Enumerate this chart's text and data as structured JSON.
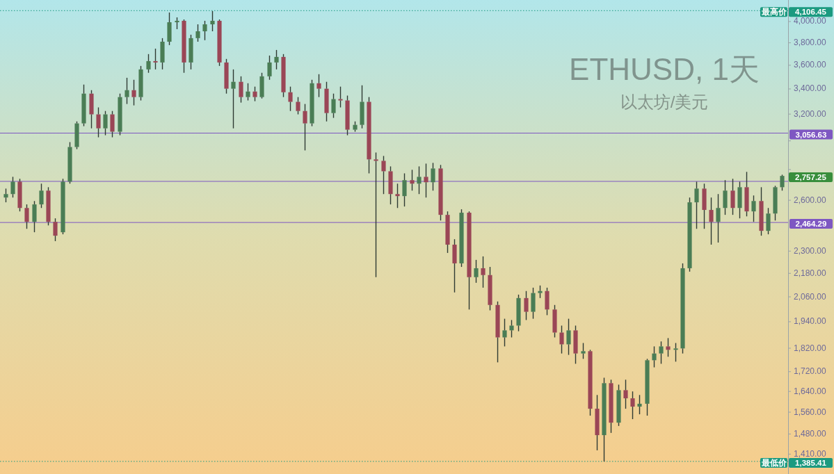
{
  "chart_data": {
    "type": "candlestick",
    "title": "ETHUSD, 1天",
    "subtitle": "以太坊/美元",
    "categories": [
      null,
      null,
      null,
      null,
      null,
      null,
      null,
      null,
      null,
      null,
      null,
      null,
      null,
      null,
      null,
      null,
      null,
      null,
      null,
      null,
      null,
      null,
      null,
      null,
      null,
      null,
      null,
      null,
      null,
      null,
      null,
      null,
      null,
      null,
      null,
      null,
      null,
      null,
      null,
      null,
      null,
      null,
      null,
      null,
      null,
      null,
      null,
      null,
      null,
      null,
      null,
      null,
      null,
      null,
      null,
      null,
      null,
      null,
      null,
      null,
      null,
      null,
      null,
      null,
      null,
      null,
      null,
      null,
      null,
      null,
      null,
      null,
      null,
      null,
      null,
      null,
      null,
      null,
      null,
      null,
      null,
      null,
      null,
      null,
      null,
      null,
      null,
      null,
      null,
      null,
      null,
      null,
      null,
      null,
      null,
      null,
      null,
      null,
      null,
      null,
      null,
      null,
      null,
      null,
      null,
      null,
      null,
      null,
      null,
      null
    ],
    "ohlc": [
      [
        2617,
        2674,
        2587,
        2639
      ],
      [
        2639,
        2751,
        2617,
        2719
      ],
      [
        2719,
        2738,
        2531,
        2552
      ],
      [
        2552,
        2574,
        2427,
        2468
      ],
      [
        2468,
        2595,
        2407,
        2574
      ],
      [
        2574,
        2706,
        2552,
        2661
      ],
      [
        2661,
        2683,
        2447,
        2468
      ],
      [
        2468,
        2489,
        2356,
        2387
      ],
      [
        2407,
        2738,
        2395,
        2719
      ],
      [
        2719,
        2991,
        2706,
        2956
      ],
      [
        2956,
        3144,
        2941,
        3129
      ],
      [
        3129,
        3436,
        3108,
        3362
      ],
      [
        3362,
        3390,
        3092,
        3198
      ],
      [
        3198,
        3252,
        3026,
        3092
      ],
      [
        3092,
        3224,
        3041,
        3198
      ],
      [
        3198,
        3224,
        3026,
        3067
      ],
      [
        3067,
        3362,
        3041,
        3334
      ],
      [
        3334,
        3493,
        3279,
        3390
      ],
      [
        3390,
        3476,
        3268,
        3334
      ],
      [
        3334,
        3594,
        3307,
        3564
      ],
      [
        3564,
        3698,
        3535,
        3636
      ],
      [
        3636,
        3747,
        3564,
        3624
      ],
      [
        3624,
        3843,
        3564,
        3810
      ],
      [
        3810,
        4088,
        3779,
        3993
      ],
      [
        3993,
        4040,
        3927,
        4007
      ],
      [
        4007,
        4020,
        3535,
        3624
      ],
      [
        3624,
        3875,
        3564,
        3843
      ],
      [
        3843,
        3973,
        3810,
        3907
      ],
      [
        3907,
        4007,
        3824,
        3973
      ],
      [
        3973,
        4102,
        3907,
        4007
      ],
      [
        4007,
        4020,
        3594,
        3624
      ],
      [
        3624,
        3655,
        3362,
        3402
      ],
      [
        3402,
        3564,
        3092,
        3459
      ],
      [
        3459,
        3505,
        3290,
        3334
      ],
      [
        3334,
        3447,
        3307,
        3379
      ],
      [
        3379,
        3419,
        3301,
        3334
      ],
      [
        3334,
        3535,
        3323,
        3505
      ],
      [
        3505,
        3685,
        3476,
        3624
      ],
      [
        3624,
        3735,
        3564,
        3673
      ],
      [
        3673,
        3698,
        3334,
        3373
      ],
      [
        3373,
        3419,
        3224,
        3296
      ],
      [
        3296,
        3334,
        3198,
        3224
      ],
      [
        3224,
        3279,
        2932,
        3129
      ],
      [
        3129,
        3476,
        3108,
        3447
      ],
      [
        3447,
        3523,
        3334,
        3402
      ],
      [
        3402,
        3459,
        3144,
        3208
      ],
      [
        3208,
        3362,
        3171,
        3318
      ],
      [
        3318,
        3419,
        3252,
        3307
      ],
      [
        3307,
        3346,
        3041,
        3082
      ],
      [
        3082,
        3144,
        3067,
        3118
      ],
      [
        3118,
        3430,
        3092,
        3296
      ],
      [
        3296,
        3334,
        2774,
        2869
      ],
      [
        2869,
        2917,
        2160,
        2859
      ],
      [
        2859,
        2893,
        2639,
        2788
      ],
      [
        2788,
        2821,
        2574,
        2639
      ],
      [
        2639,
        2706,
        2552,
        2626
      ],
      [
        2626,
        2774,
        2561,
        2729
      ],
      [
        2729,
        2798,
        2661,
        2706
      ],
      [
        2706,
        2821,
        2639,
        2751
      ],
      [
        2751,
        2840,
        2617,
        2715
      ],
      [
        2715,
        2845,
        2661,
        2807
      ],
      [
        2807,
        2831,
        2476,
        2510
      ],
      [
        2510,
        2531,
        2290,
        2336
      ],
      [
        2336,
        2367,
        2082,
        2233
      ],
      [
        2233,
        2544,
        2214,
        2523
      ],
      [
        2523,
        2531,
        1998,
        2160
      ],
      [
        2160,
        2252,
        2131,
        2207
      ],
      [
        2207,
        2271,
        2106,
        2171
      ],
      [
        2171,
        2214,
        1994,
        2020
      ],
      [
        2020,
        2037,
        1759,
        1868
      ],
      [
        1868,
        1954,
        1828,
        1900
      ],
      [
        1900,
        1948,
        1868,
        1922
      ],
      [
        1922,
        2071,
        1896,
        2054
      ],
      [
        2054,
        2089,
        1948,
        1987
      ],
      [
        1987,
        2106,
        1954,
        2079
      ],
      [
        2079,
        2117,
        2054,
        2089
      ],
      [
        2089,
        2106,
        1971,
        1998
      ],
      [
        1998,
        2020,
        1868,
        1890
      ],
      [
        1890,
        1922,
        1797,
        1837
      ],
      [
        1837,
        1954,
        1791,
        1900
      ],
      [
        1900,
        1922,
        1753,
        1797
      ],
      [
        1797,
        1843,
        1774,
        1807
      ],
      [
        1807,
        1813,
        1547,
        1573
      ],
      [
        1573,
        1626,
        1423,
        1476
      ],
      [
        1476,
        1695,
        1385,
        1673
      ],
      [
        1673,
        1687,
        1484,
        1521
      ],
      [
        1521,
        1667,
        1509,
        1645
      ],
      [
        1645,
        1687,
        1573,
        1613
      ],
      [
        1613,
        1640,
        1534,
        1581
      ],
      [
        1581,
        1626,
        1552,
        1592
      ],
      [
        1592,
        1774,
        1547,
        1768
      ],
      [
        1768,
        1828,
        1738,
        1797
      ],
      [
        1797,
        1850,
        1753,
        1828
      ],
      [
        1828,
        1865,
        1783,
        1813
      ],
      [
        1813,
        1843,
        1762,
        1819
      ],
      [
        1819,
        2233,
        1797,
        2207
      ],
      [
        2207,
        2617,
        2189,
        2587
      ],
      [
        2587,
        2719,
        2427,
        2674
      ],
      [
        2674,
        2706,
        2427,
        2540
      ],
      [
        2540,
        2617,
        2336,
        2468
      ],
      [
        2468,
        2639,
        2348,
        2552
      ],
      [
        2552,
        2729,
        2510,
        2661
      ],
      [
        2661,
        2738,
        2510,
        2552
      ],
      [
        2552,
        2719,
        2489,
        2683
      ],
      [
        2683,
        2784,
        2501,
        2531
      ],
      [
        2531,
        2630,
        2468,
        2595
      ],
      [
        2595,
        2683,
        2387,
        2415
      ],
      [
        2415,
        2552,
        2395,
        2518
      ],
      [
        2518,
        2692,
        2476,
        2683
      ],
      [
        2683,
        2765,
        2661,
        2757
      ]
    ],
    "log": "y",
    "ylim": [
      1344,
      4213
    ],
    "yticks": [
      {
        "value": 4000,
        "label": "4,000.00"
      },
      {
        "value": 3800,
        "label": "3,800.00"
      },
      {
        "value": 3600,
        "label": "3,600.00"
      },
      {
        "value": 3400,
        "label": "3,400.00"
      },
      {
        "value": 3200,
        "label": "3,200.00"
      },
      {
        "value": 3000,
        "label": null
      },
      {
        "value": 2800,
        "label": null
      },
      {
        "value": 2600,
        "label": "2,600.00"
      },
      {
        "value": 2300,
        "label": "2,300.00"
      },
      {
        "value": 2180,
        "label": "2,180.00"
      },
      {
        "value": 2060,
        "label": "2,060.00"
      },
      {
        "value": 1940,
        "label": "1,940.00"
      },
      {
        "value": 1820,
        "label": "1,820.00"
      },
      {
        "value": 1720,
        "label": "1,720.00"
      },
      {
        "value": 1640,
        "label": "1,640.00"
      },
      {
        "value": 1560,
        "label": "1,560.00"
      },
      {
        "value": 1480,
        "label": "1,480.00"
      },
      {
        "value": 1410,
        "label": "1,410.00"
      }
    ],
    "ref_lines": [
      {
        "axis": "y",
        "value": 4106.45,
        "label": "最高价",
        "color": "#1b9a80",
        "line_style": "dotted"
      },
      {
        "axis": "y",
        "value": 3056.63,
        "label": "3,056.63",
        "color": "#7e57c2",
        "line_style": "solid"
      },
      {
        "axis": "y",
        "value": 2721,
        "label": null,
        "color": "#7e57c2",
        "line_style": "solid"
      },
      {
        "axis": "y",
        "value": 2464.29,
        "label": "2,464.29",
        "color": "#7e57c2",
        "line_style": "solid"
      },
      {
        "axis": "y",
        "value": 1385.41,
        "label": "最低价",
        "color": "#1b9a80",
        "line_style": "dotted"
      }
    ],
    "annotations": [
      "4,106.45",
      "2,757.25",
      "1,385.41"
    ],
    "grid": false
  }
}
